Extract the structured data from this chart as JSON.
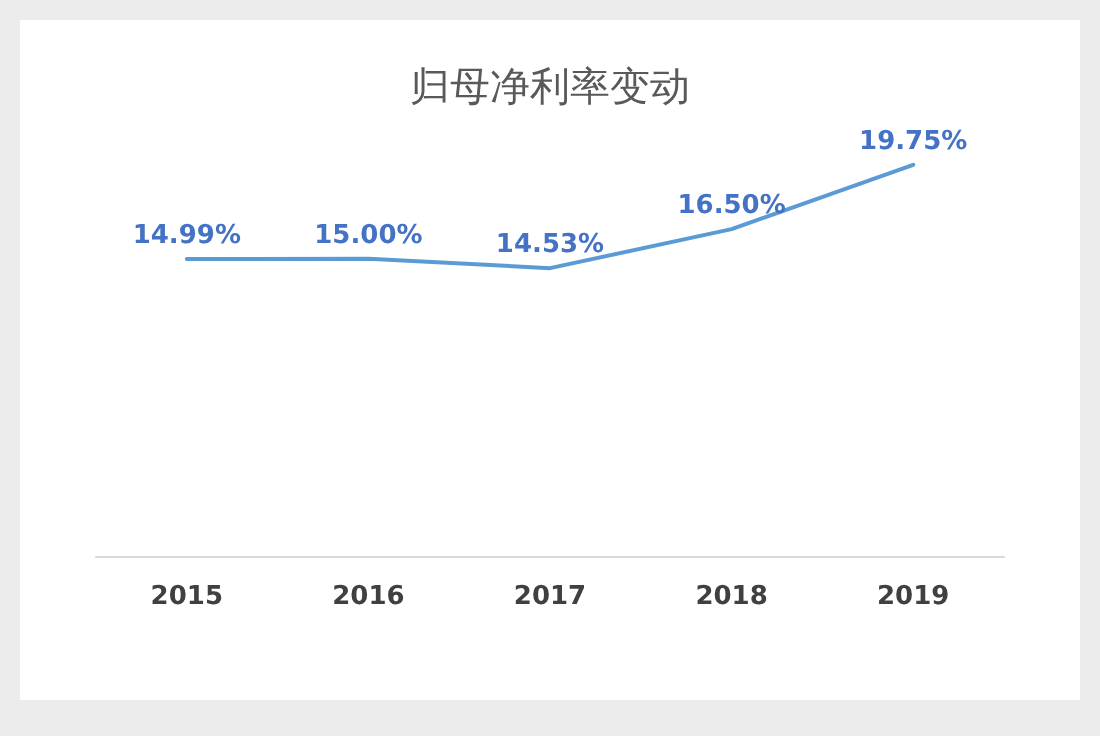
{
  "chart_data": {
    "type": "line",
    "title": "归母净利率变动",
    "categories": [
      "2015",
      "2016",
      "2017",
      "2018",
      "2019"
    ],
    "color": "#5b9bd5",
    "values": [
      14.99,
      15.0,
      14.53,
      16.5,
      19.75
    ],
    "value_labels": [
      "14.99%",
      "15.00%",
      "14.53%",
      "16.50%",
      "19.75%"
    ],
    "grid": false,
    "marker": "none"
  }
}
